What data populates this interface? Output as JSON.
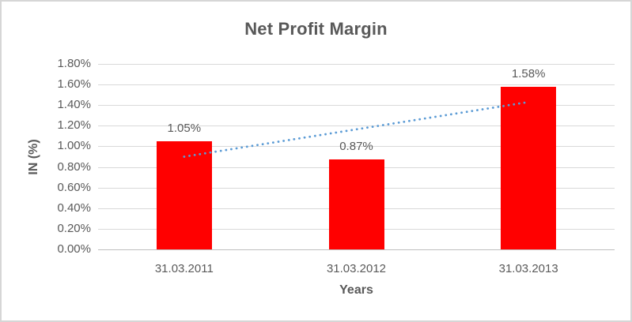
{
  "chart_data": {
    "type": "bar",
    "title": "Net Profit Margin",
    "xlabel": "Years",
    "ylabel": "IN (%)",
    "categories": [
      "31.03.2011",
      "31.03.2012",
      "31.03.2013"
    ],
    "values": [
      1.05,
      0.87,
      1.58
    ],
    "data_labels": [
      "1.05%",
      "0.87%",
      "1.58%"
    ],
    "y_ticks": [
      "0.00%",
      "0.20%",
      "0.40%",
      "0.60%",
      "0.80%",
      "1.00%",
      "1.20%",
      "1.40%",
      "1.60%",
      "1.80%"
    ],
    "ylim": [
      0,
      1.8
    ],
    "grid": true,
    "legend": "none",
    "bar_color": "#FF0000",
    "trendline": {
      "type": "linear",
      "style": "dotted",
      "color": "#5B9BD5",
      "start_value": 0.9,
      "end_value": 1.43
    },
    "colors": {
      "title_text": "#595959",
      "axis_text": "#595959",
      "gridline": "#D9D9D9",
      "axis_line": "#BFBFBF",
      "border": "#D6D6D6",
      "background": "#FFFFFF"
    }
  }
}
